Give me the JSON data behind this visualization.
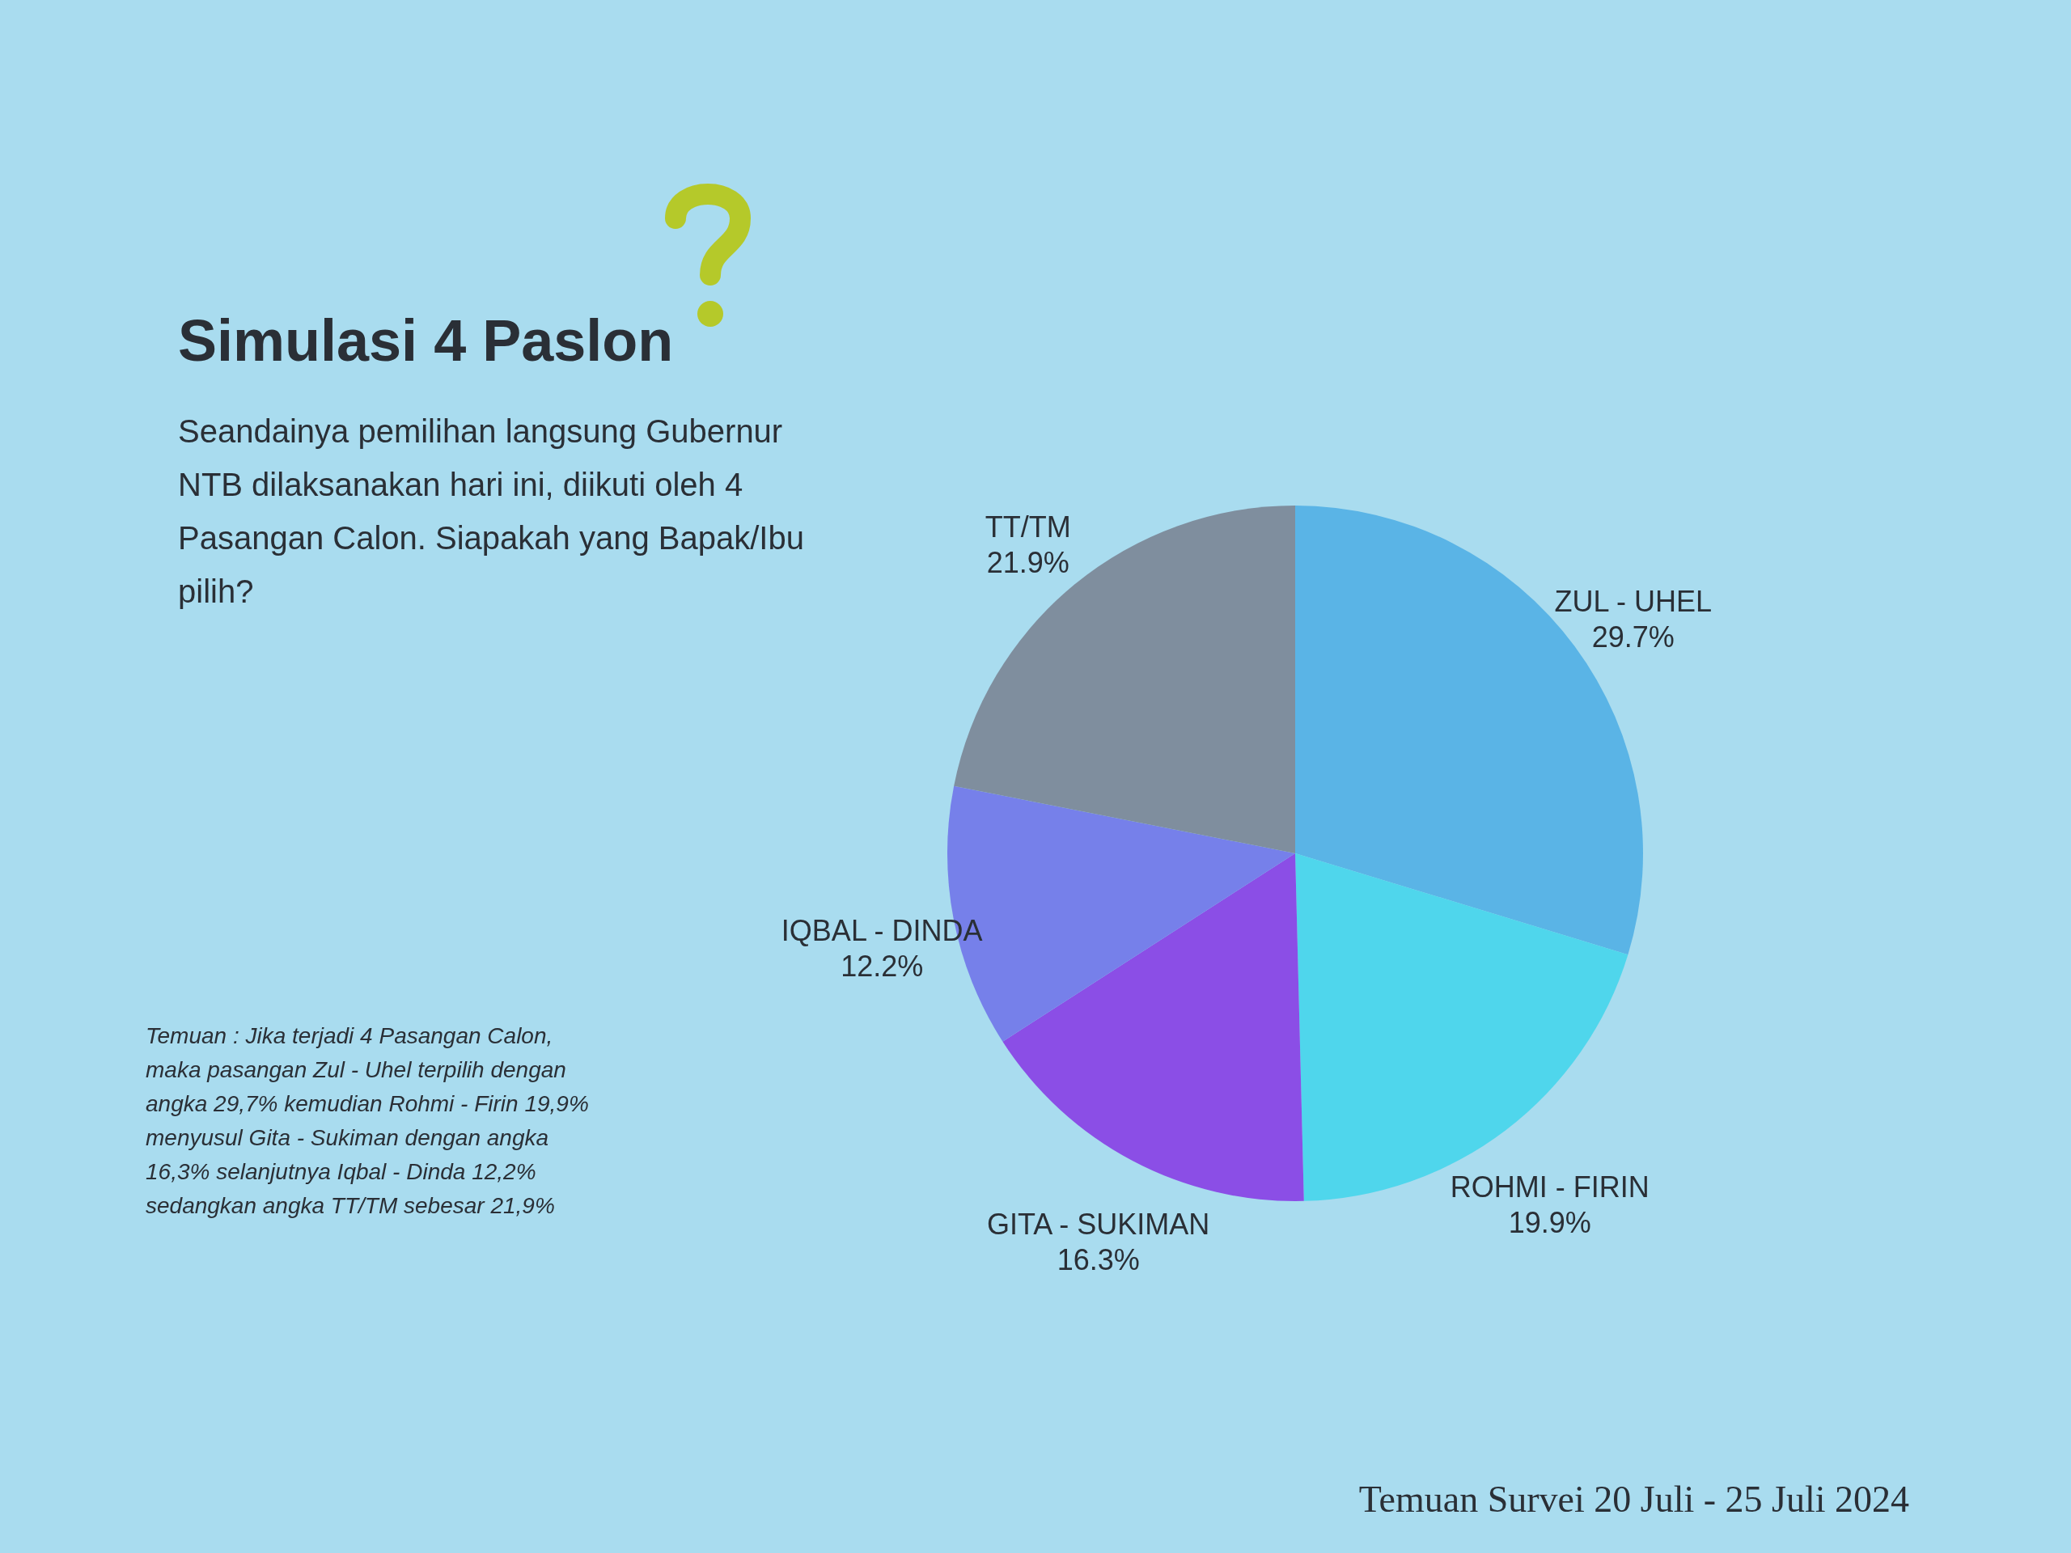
{
  "chart_data": {
    "type": "pie",
    "title": "Simulasi 4 Paslon",
    "subtitle": "Seandainya pemilihan langsung Gubernur NTB dilaksanakan hari ini, diikuti oleh 4 Pasangan Calon. Siapakah yang Bapak/Ibu pilih?",
    "categories": [
      "ZUL - UHEL",
      "ROHMI - FIRIN",
      "GITA - SUKIMAN",
      "IQBAL - DINDA",
      "TT/TM"
    ],
    "values": [
      29.7,
      19.9,
      16.3,
      12.2,
      21.9
    ],
    "value_labels": [
      "29.7%",
      "19.9%",
      "16.3%",
      "12.2%",
      "21.9%"
    ],
    "colors": [
      "#5ab4e6",
      "#4fd6ec",
      "#8b4ee6",
      "#7680ea",
      "#7f8e9e"
    ],
    "annotations": [
      "Temuan : Jika terjadi 4 Pasangan Calon, maka pasangan Zul - Uhel terpilih dengan angka 29,7% kemudian Rohmi - Firin 19,9% menyusul Gita - Sukiman dengan angka 16,3% selanjutnya Iqbal - Dinda 12,2% sedangkan angka TT/TM sebesar 21,9%",
      "Temuan Survei 20 Juli - 25 Juli 2024"
    ],
    "legend": false
  }
}
